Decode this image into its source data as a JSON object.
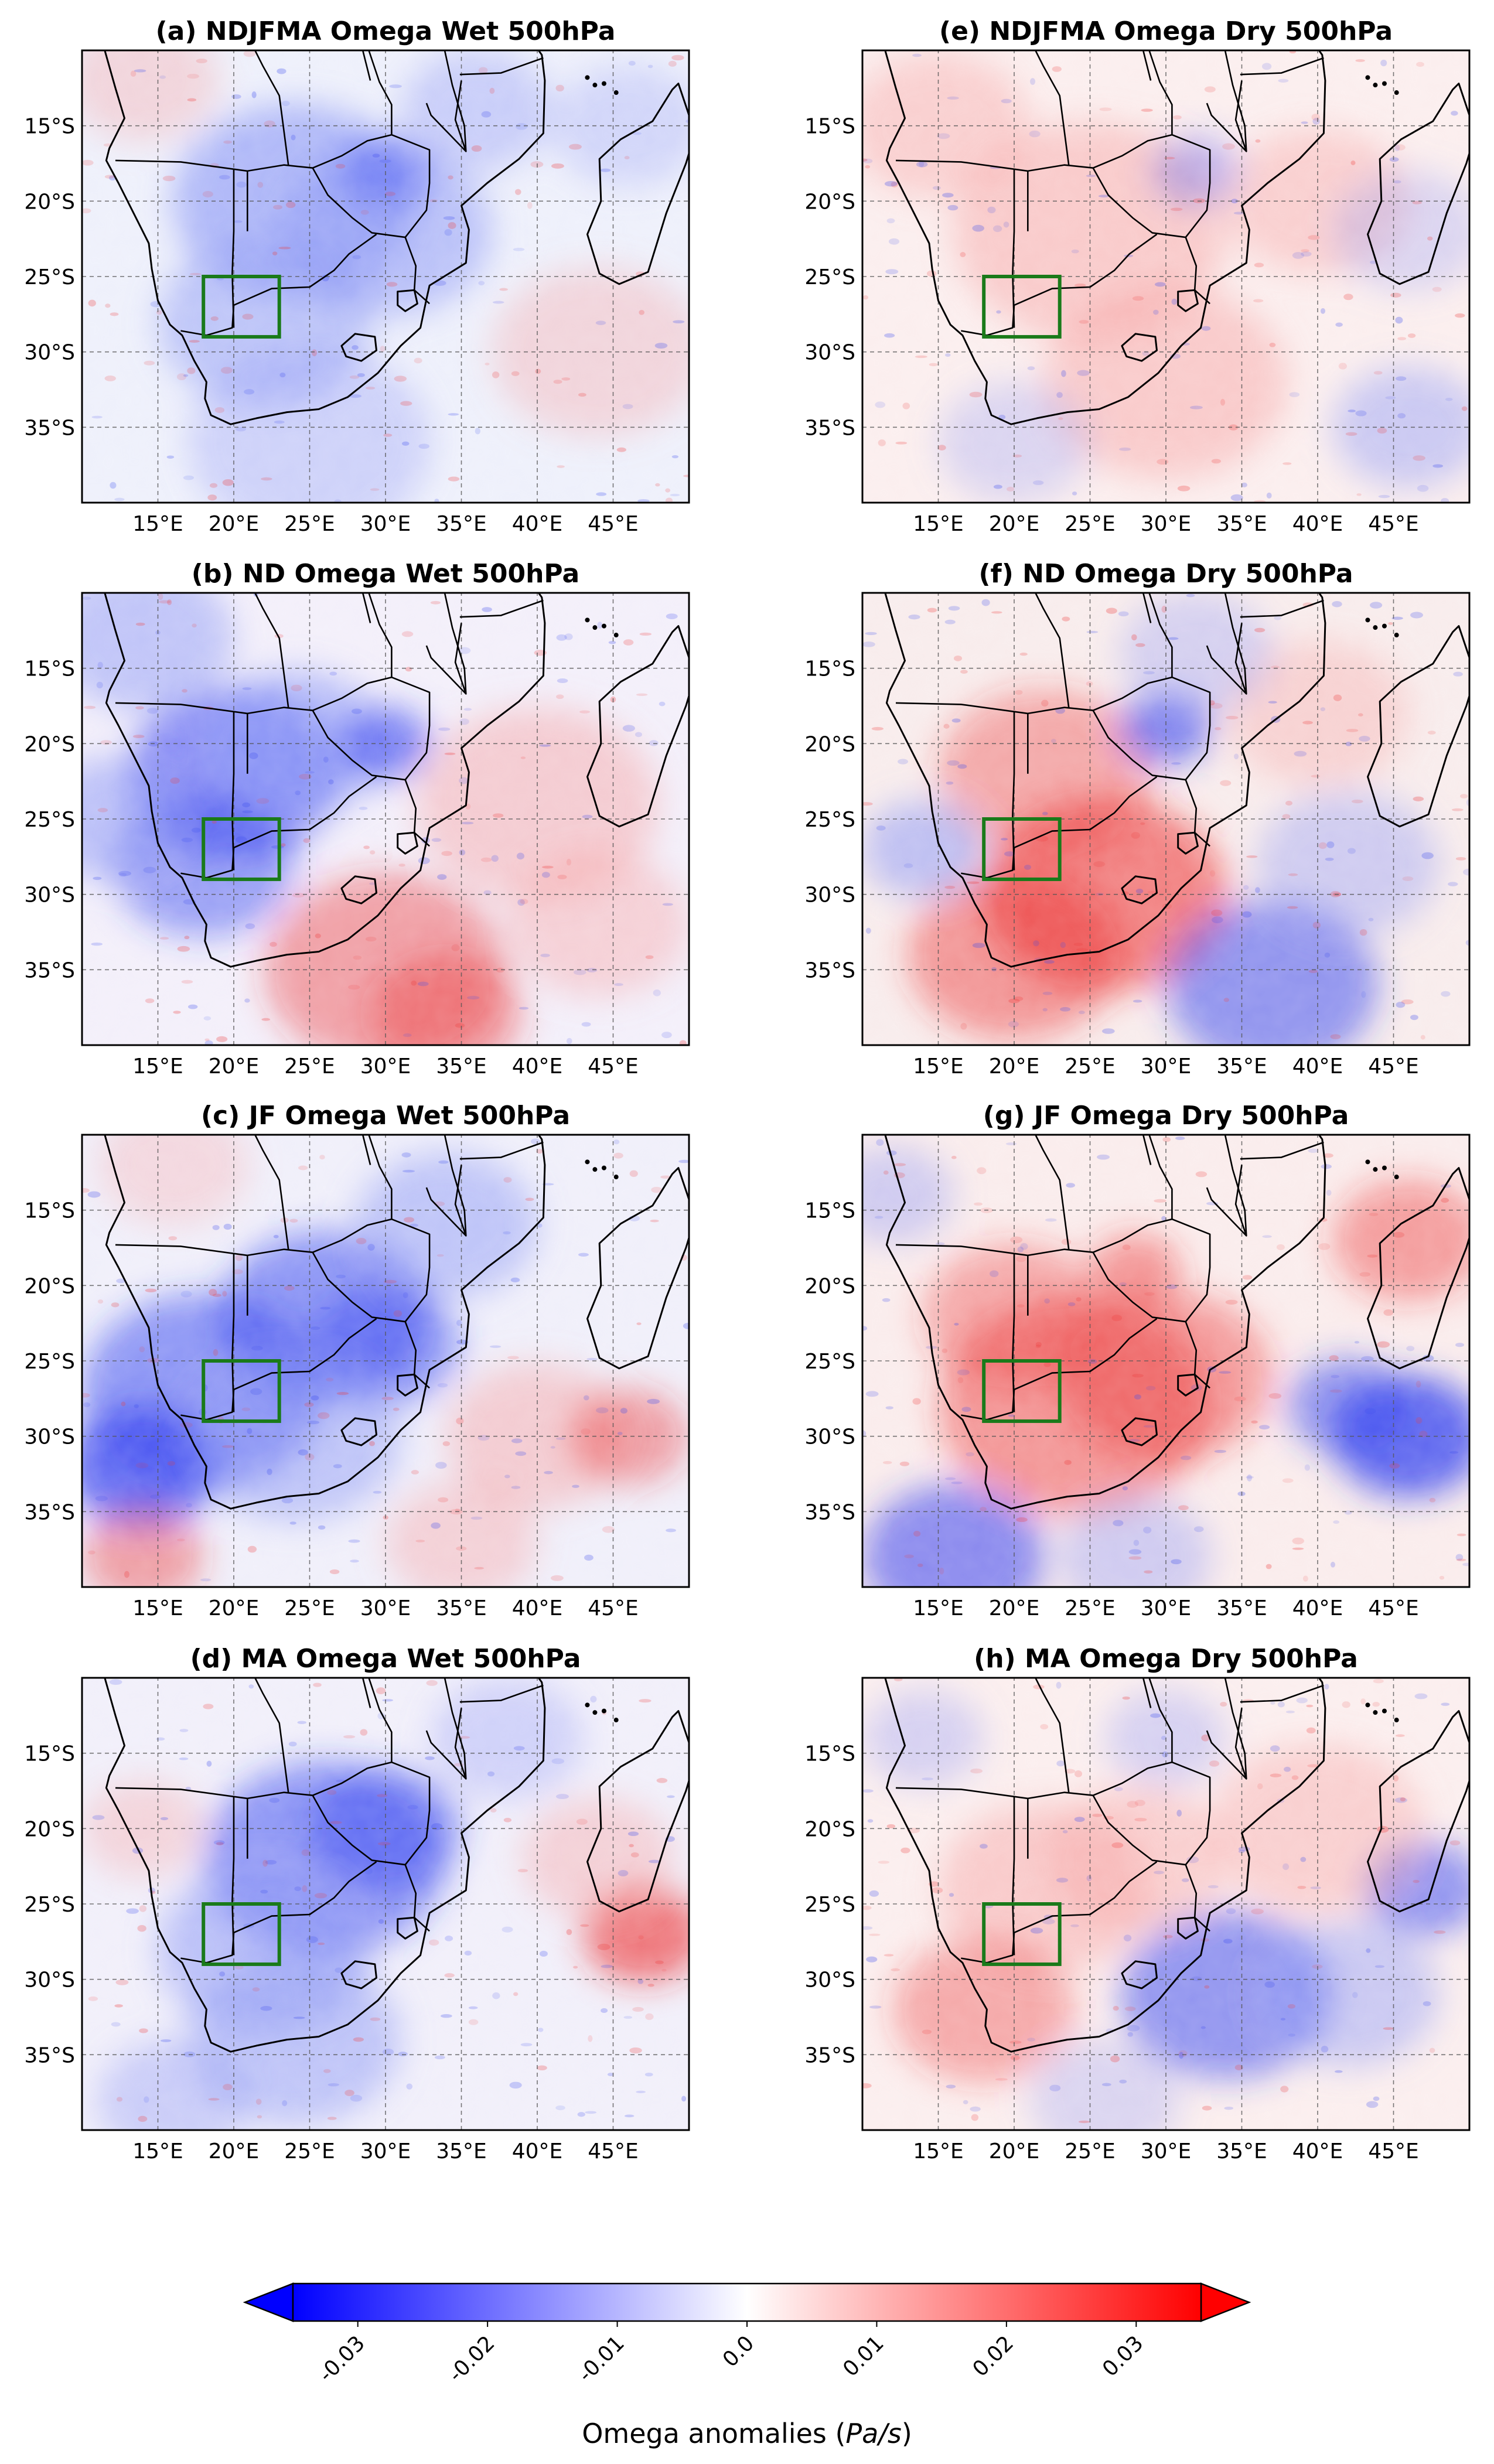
{
  "figure": {
    "panels": [
      {
        "id": "a",
        "title": "(a) NDJFMA Omega Wet 500hPa",
        "pattern": "ndjfma-wet"
      },
      {
        "id": "e",
        "title": "(e) NDJFMA Omega Dry 500hPa",
        "pattern": "ndjfma-dry"
      },
      {
        "id": "b",
        "title": "(b) ND Omega Wet 500hPa",
        "pattern": "nd-wet"
      },
      {
        "id": "f",
        "title": "(f) ND Omega Dry 500hPa",
        "pattern": "nd-dry"
      },
      {
        "id": "c",
        "title": "(c) JF Omega Wet 500hPa",
        "pattern": "jf-wet"
      },
      {
        "id": "g",
        "title": "(g) JF Omega Dry 500hPa",
        "pattern": "jf-dry"
      },
      {
        "id": "d",
        "title": "(d) MA Omega Wet 500hPa",
        "pattern": "ma-wet"
      },
      {
        "id": "h",
        "title": "(h) MA Omega Dry 500hPa",
        "pattern": "ma-dry"
      }
    ],
    "map_extent": {
      "lon": [
        10,
        50
      ],
      "lat": [
        -40,
        -10
      ]
    },
    "x_ticks": [
      {
        "lon": 15,
        "label": "15°E"
      },
      {
        "lon": 20,
        "label": "20°E"
      },
      {
        "lon": 25,
        "label": "25°E"
      },
      {
        "lon": 30,
        "label": "30°E"
      },
      {
        "lon": 35,
        "label": "35°E"
      },
      {
        "lon": 40,
        "label": "40°E"
      },
      {
        "lon": 45,
        "label": "45°E"
      }
    ],
    "y_ticks": [
      {
        "lat": -15,
        "label": "15°S"
      },
      {
        "lat": -20,
        "label": "20°S"
      },
      {
        "lat": -25,
        "label": "25°S"
      },
      {
        "lat": -30,
        "label": "30°S"
      },
      {
        "lat": -35,
        "label": "35°S"
      }
    ],
    "study_box": {
      "lon": [
        18,
        23
      ],
      "lat": [
        -29,
        -25
      ],
      "color": "#1a7a1a"
    },
    "colorbar": {
      "label_prefix": "Omega anomalies ",
      "label_units": "Pa/s",
      "min": -0.035,
      "max": 0.035,
      "ticks": [
        {
          "value": -0.03,
          "label": "-0.03"
        },
        {
          "value": -0.02,
          "label": "-0.02"
        },
        {
          "value": -0.01,
          "label": "-0.01"
        },
        {
          "value": 0.0,
          "label": "0.0"
        },
        {
          "value": 0.01,
          "label": "0.01"
        },
        {
          "value": 0.02,
          "label": "0.02"
        },
        {
          "value": 0.03,
          "label": "0.03"
        }
      ],
      "colors": {
        "negative": "#0000ff",
        "zero": "#ffffff",
        "positive": "#ff0000"
      }
    }
  }
}
